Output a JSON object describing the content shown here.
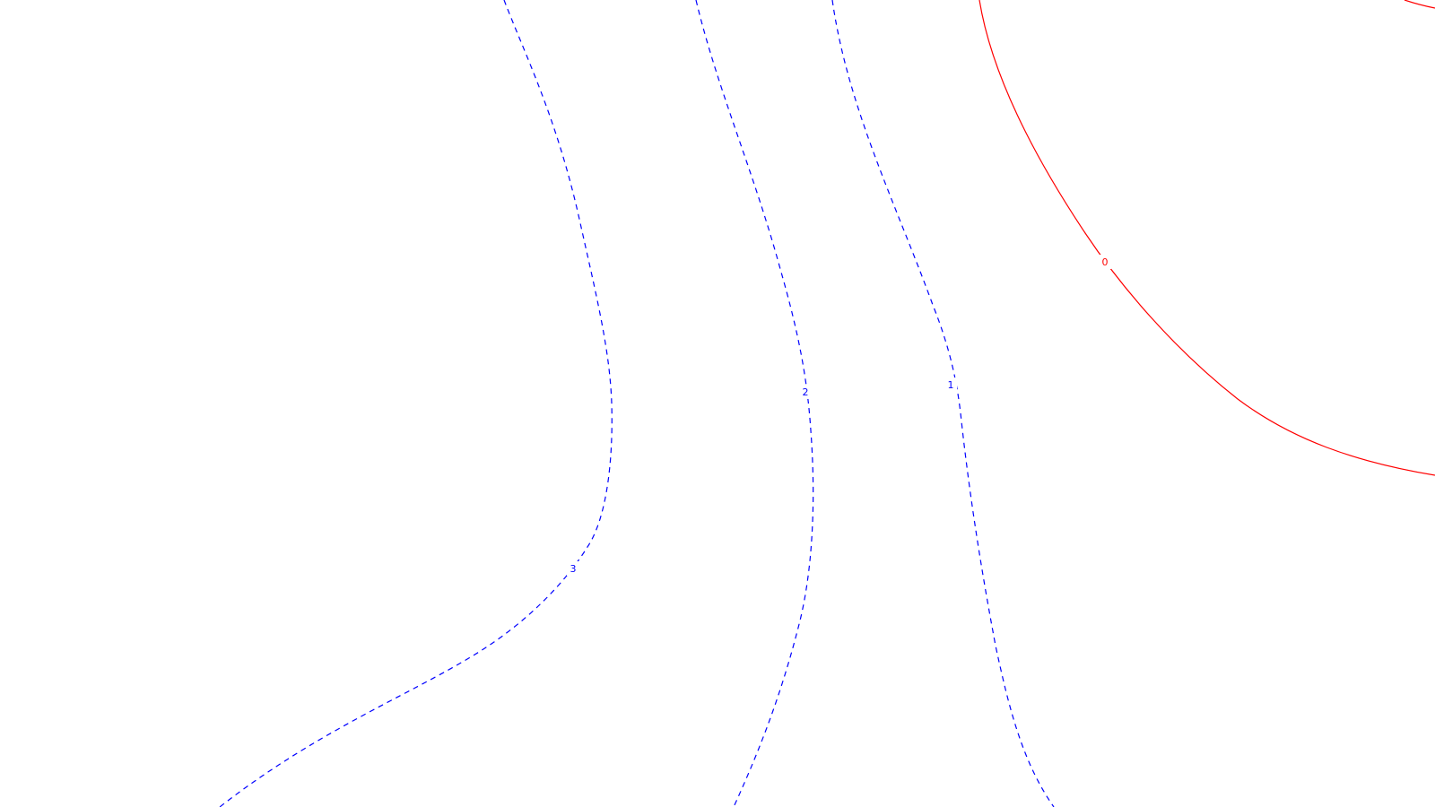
{
  "contours": [
    {
      "id": "neg3",
      "label": "3",
      "color": "#0000ff",
      "style": "dashed"
    },
    {
      "id": "neg2",
      "label": "2",
      "color": "#0000ff",
      "style": "dashed"
    },
    {
      "id": "neg1",
      "label": "1",
      "color": "#0000ff",
      "style": "dashed"
    },
    {
      "id": "zero",
      "label": "0",
      "color": "#ff0000",
      "style": "solid"
    }
  ]
}
